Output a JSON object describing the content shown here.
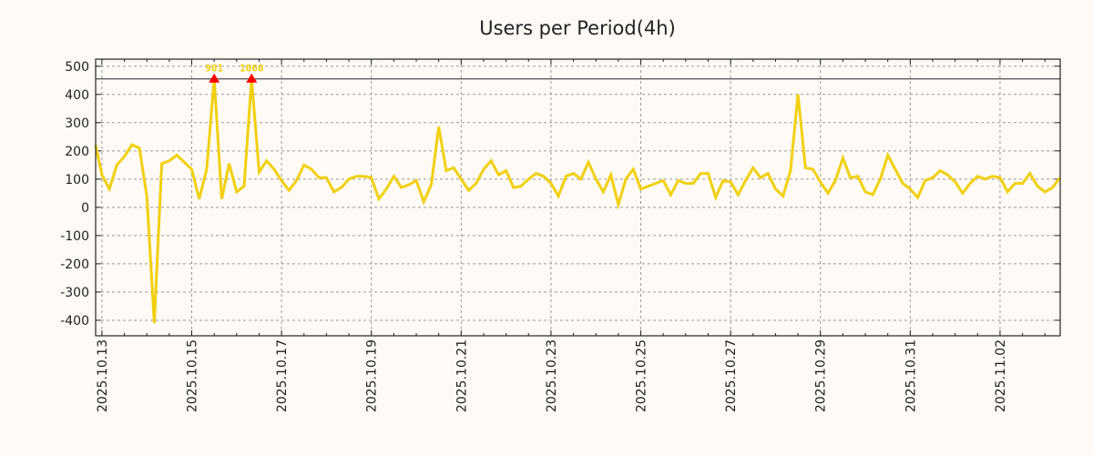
{
  "chart_data": {
    "type": "line",
    "title": "Users per Period(4h)",
    "xlabel": "",
    "ylabel": "",
    "x_origin_date": "2025.10.13",
    "x_start_day": -0.1667,
    "x_step_day": 0.16667,
    "xlim_days": [
      -0.14,
      21.34
    ],
    "ylim": [
      -455,
      525
    ],
    "clip_value": 455,
    "yticks": [
      500,
      400,
      300,
      200,
      100,
      0,
      -100,
      -200,
      -300,
      -400
    ],
    "xtick_days": [
      0,
      2,
      4,
      6,
      8,
      10,
      12,
      14,
      16,
      18,
      20
    ],
    "xtick_labels": [
      "2025.10.13",
      "2025.10.15",
      "2025.10.17",
      "2025.10.19",
      "2025.10.21",
      "2025.10.23",
      "2025.10.25",
      "2025.10.27",
      "2025.10.29",
      "2025.10.31",
      "2025.11.02"
    ],
    "grid": true,
    "series": [
      {
        "name": "Users",
        "color": "#f0d010",
        "values": [
          220,
          115,
          65,
          150,
          180,
          222,
          210,
          40,
          -410,
          155,
          165,
          185,
          160,
          135,
          30,
          135,
          901,
          30,
          155,
          55,
          75,
          1060,
          125,
          165,
          135,
          95,
          60,
          95,
          150,
          135,
          105,
          105,
          55,
          70,
          100,
          110,
          110,
          105,
          30,
          65,
          110,
          70,
          80,
          95,
          20,
          80,
          285,
          130,
          140,
          100,
          60,
          85,
          135,
          165,
          115,
          130,
          70,
          75,
          100,
          120,
          110,
          85,
          40,
          110,
          120,
          100,
          160,
          100,
          55,
          115,
          10,
          100,
          135,
          65,
          75,
          85,
          95,
          45,
          95,
          85,
          85,
          120,
          120,
          35,
          95,
          90,
          45,
          95,
          140,
          105,
          120,
          65,
          40,
          130,
          400,
          140,
          135,
          90,
          50,
          95,
          175,
          105,
          110,
          55,
          45,
          100,
          185,
          135,
          85,
          65,
          35,
          95,
          105,
          130,
          115,
          90,
          50,
          85,
          110,
          100,
          110,
          105,
          55,
          85,
          85,
          120,
          75,
          55,
          70,
          105
        ]
      }
    ],
    "annotations": [
      {
        "label": "901",
        "value": 901,
        "marker_color": "#ff0000"
      },
      {
        "label": "1060",
        "value": 1060,
        "marker_color": "#ff0000"
      }
    ],
    "colors": {
      "background": "#fffaf5",
      "grid": "#999999",
      "annotation_text": "#f0d010"
    }
  }
}
